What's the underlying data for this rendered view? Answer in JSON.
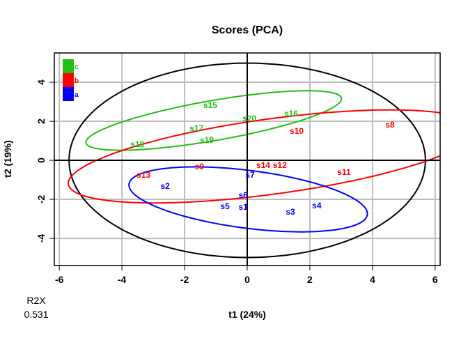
{
  "chart_data": {
    "type": "scatter",
    "title": "Scores (PCA)",
    "xlabel": "t1 (24%)",
    "ylabel": "t2 (19%)",
    "xlim": [
      -6.16,
      6.16
    ],
    "ylim": [
      -5.39,
      5.5
    ],
    "xticks": [
      -6,
      -4,
      -2,
      0,
      2,
      4,
      6
    ],
    "yticks": [
      -4,
      -2,
      0,
      2,
      4
    ],
    "grid": true,
    "legend_placement": "top-left",
    "legend": [
      {
        "label": "c",
        "color": "#22c010"
      },
      {
        "label": "b",
        "color": "#ff0000"
      },
      {
        "label": "a",
        "color": "#0000ff"
      }
    ],
    "groups": {
      "a": {
        "color": "#0000ff",
        "ellipse": {
          "cx": 0.03,
          "cy": -2.0,
          "a": 3.89,
          "b": 1.46,
          "angle_deg": -12.8
        }
      },
      "b": {
        "color": "#ff0000",
        "ellipse": {
          "cx": 0.8,
          "cy": 0.2,
          "a": 6.67,
          "b": 1.9,
          "angle_deg": 13
        }
      },
      "c": {
        "color": "#22c010",
        "ellipse": {
          "cx": -1.07,
          "cy": 2.04,
          "a": 4.24,
          "b": 1.0,
          "angle_deg": 16.2
        }
      }
    },
    "hotelling_ellipse": {
      "cx": 0,
      "cy": 0,
      "a": 5.69,
      "b": 4.98,
      "angle_deg": 0,
      "color": "#000000"
    },
    "points": [
      {
        "label": "s1",
        "group": "a",
        "x": -0.13,
        "y": -2.39
      },
      {
        "label": "s2",
        "group": "a",
        "x": -2.62,
        "y": -1.32
      },
      {
        "label": "s3",
        "group": "a",
        "x": 1.38,
        "y": -2.64
      },
      {
        "label": "s4",
        "group": "a",
        "x": 2.22,
        "y": -2.32
      },
      {
        "label": "s5",
        "group": "a",
        "x": -0.71,
        "y": -2.36
      },
      {
        "label": "s6",
        "group": "a",
        "x": -0.13,
        "y": -2.29
      },
      {
        "label": "s7",
        "group": "a",
        "x": 0.09,
        "y": -0.75
      },
      {
        "label": "s8",
        "group": "b",
        "x": 4.56,
        "y": 1.82
      },
      {
        "label": "s9",
        "group": "b",
        "x": -1.53,
        "y": -0.32
      },
      {
        "label": "s10",
        "group": "b",
        "x": 1.58,
        "y": 1.5
      },
      {
        "label": "s11",
        "group": "b",
        "x": 3.09,
        "y": -0.61
      },
      {
        "label": "s12",
        "group": "b",
        "x": 1.04,
        "y": -0.25
      },
      {
        "label": "s13",
        "group": "b",
        "x": -3.31,
        "y": -0.75
      },
      {
        "label": "s14",
        "group": "b",
        "x": 0.51,
        "y": -0.25
      },
      {
        "label": "s15",
        "group": "c",
        "x": -1.18,
        "y": 2.82
      },
      {
        "label": "s16",
        "group": "c",
        "x": 1.4,
        "y": 2.39
      },
      {
        "label": "s17",
        "group": "c",
        "x": -1.62,
        "y": 1.64
      },
      {
        "label": "s18",
        "group": "c",
        "x": -3.51,
        "y": 0.82
      },
      {
        "label": "s19",
        "group": "c",
        "x": -1.29,
        "y": 2.04
      },
      {
        "label": "s20",
        "group": "c",
        "x": 0.07,
        "y": 2.14
      }
    ],
    "footer": {
      "label": "R2X",
      "value": "0.531"
    }
  }
}
